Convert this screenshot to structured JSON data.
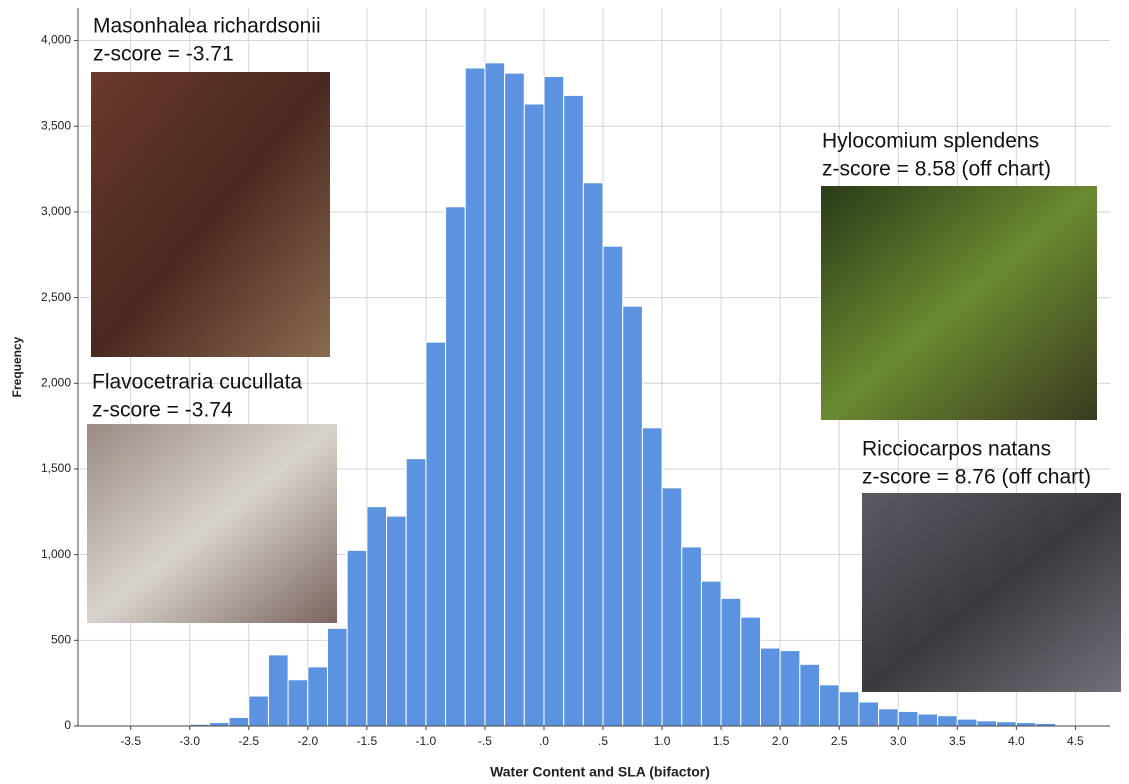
{
  "chart_data": {
    "type": "histogram",
    "x_label": "Water Content and SLA (bifactor)",
    "y_label": "Frequency",
    "bins": [
      -3.3333,
      -3.1667,
      -3.0,
      -2.8333,
      -2.6667,
      -2.5,
      -2.3333,
      -2.1667,
      -2.0,
      -1.8333,
      -1.6667,
      -1.5,
      -1.3333,
      -1.1667,
      -1.0,
      -0.8333,
      -0.6667,
      -0.5,
      -0.3333,
      -0.1667,
      0.0,
      0.1667,
      0.3333,
      0.5,
      0.6667,
      0.8333,
      1.0,
      1.1667,
      1.3333,
      1.5,
      1.6667,
      1.8333,
      2.0,
      2.1667,
      2.3333,
      2.5,
      2.6667,
      2.8333,
      3.0,
      3.1667,
      3.3333,
      3.5,
      3.6667,
      3.8333,
      4.0,
      4.1667,
      4.3333
    ],
    "counts": [
      5,
      5,
      10,
      20,
      50,
      175,
      415,
      270,
      345,
      570,
      1025,
      1280,
      1225,
      1560,
      2240,
      3030,
      3840,
      3870,
      3810,
      3630,
      3790,
      3680,
      3170,
      2800,
      2450,
      1740,
      1390,
      1045,
      845,
      745,
      635,
      455,
      440,
      360,
      240,
      200,
      140,
      100,
      85,
      70,
      60,
      40,
      30,
      25,
      20,
      15
    ],
    "color": "#5b93e0",
    "xlim": [
      -3.946,
      4.793
    ],
    "ylim": [
      0,
      4190
    ],
    "xticks": [
      -3.5,
      {
        "value": -3.0,
        "label": "-3.0"
      },
      -2.5,
      {
        "value": -2.0,
        "label": "-2.0"
      },
      -1.5,
      {
        "value": -1.0,
        "label": "-1.0"
      },
      {
        "value": -0.5,
        "label": "-.5"
      },
      {
        "value": 0,
        "label": ".0"
      },
      {
        "value": 0.5,
        "label": ".5"
      },
      {
        "value": 1.0,
        "label": "1.0"
      },
      1.5,
      {
        "value": 2.0,
        "label": "2.0"
      },
      2.5,
      {
        "value": 3.0,
        "label": "3.0"
      },
      3.5,
      {
        "value": 4.0,
        "label": "4.0"
      },
      4.5
    ],
    "yticks": [
      0,
      500,
      {
        "value": 1000,
        "label": "1,000"
      },
      {
        "value": 1500,
        "label": "1,500"
      },
      {
        "value": 2000,
        "label": "2,000"
      },
      {
        "value": 2500,
        "label": "2,500"
      },
      {
        "value": 3000,
        "label": "3,000"
      },
      {
        "value": 3500,
        "label": "3,500"
      },
      {
        "value": 4000,
        "label": "4,000"
      }
    ],
    "grid": true,
    "annotations": [
      {
        "name": "Masonhalea richardsonii",
        "note": "z-score = -3.71"
      },
      {
        "name": "Flavocetraria cucullata",
        "note": "z-score = -3.74"
      },
      {
        "name": "Hylocomium splendens",
        "note": "z-score = 8.58 (off chart)"
      },
      {
        "name": "Ricciocarpos natans",
        "note": "z-score = 8.76 (off chart)"
      }
    ]
  }
}
